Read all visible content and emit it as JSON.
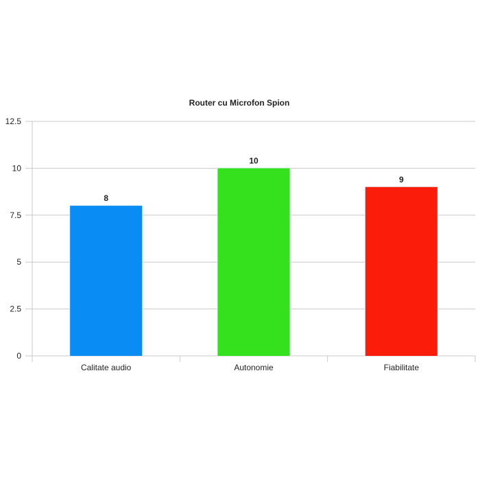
{
  "chart_data": {
    "type": "bar",
    "title": "Router cu Microfon Spion",
    "xlabel": "",
    "ylabel": "",
    "categories": [
      "Calitate audio",
      "Autonomie",
      "Fiabilitate"
    ],
    "values": [
      8,
      10,
      9
    ],
    "colors": [
      "#0a8cf5",
      "#35e01c",
      "#fc1c0a"
    ],
    "ylim": [
      0,
      12.5
    ],
    "yticks": [
      0,
      2.5,
      5,
      7.5,
      10,
      12.5
    ],
    "ytick_labels": [
      "0",
      "2.5",
      "5",
      "7.5",
      "10",
      "12.5"
    ],
    "data_labels": [
      "8",
      "10",
      "9"
    ],
    "grid": true,
    "legend": "none"
  }
}
